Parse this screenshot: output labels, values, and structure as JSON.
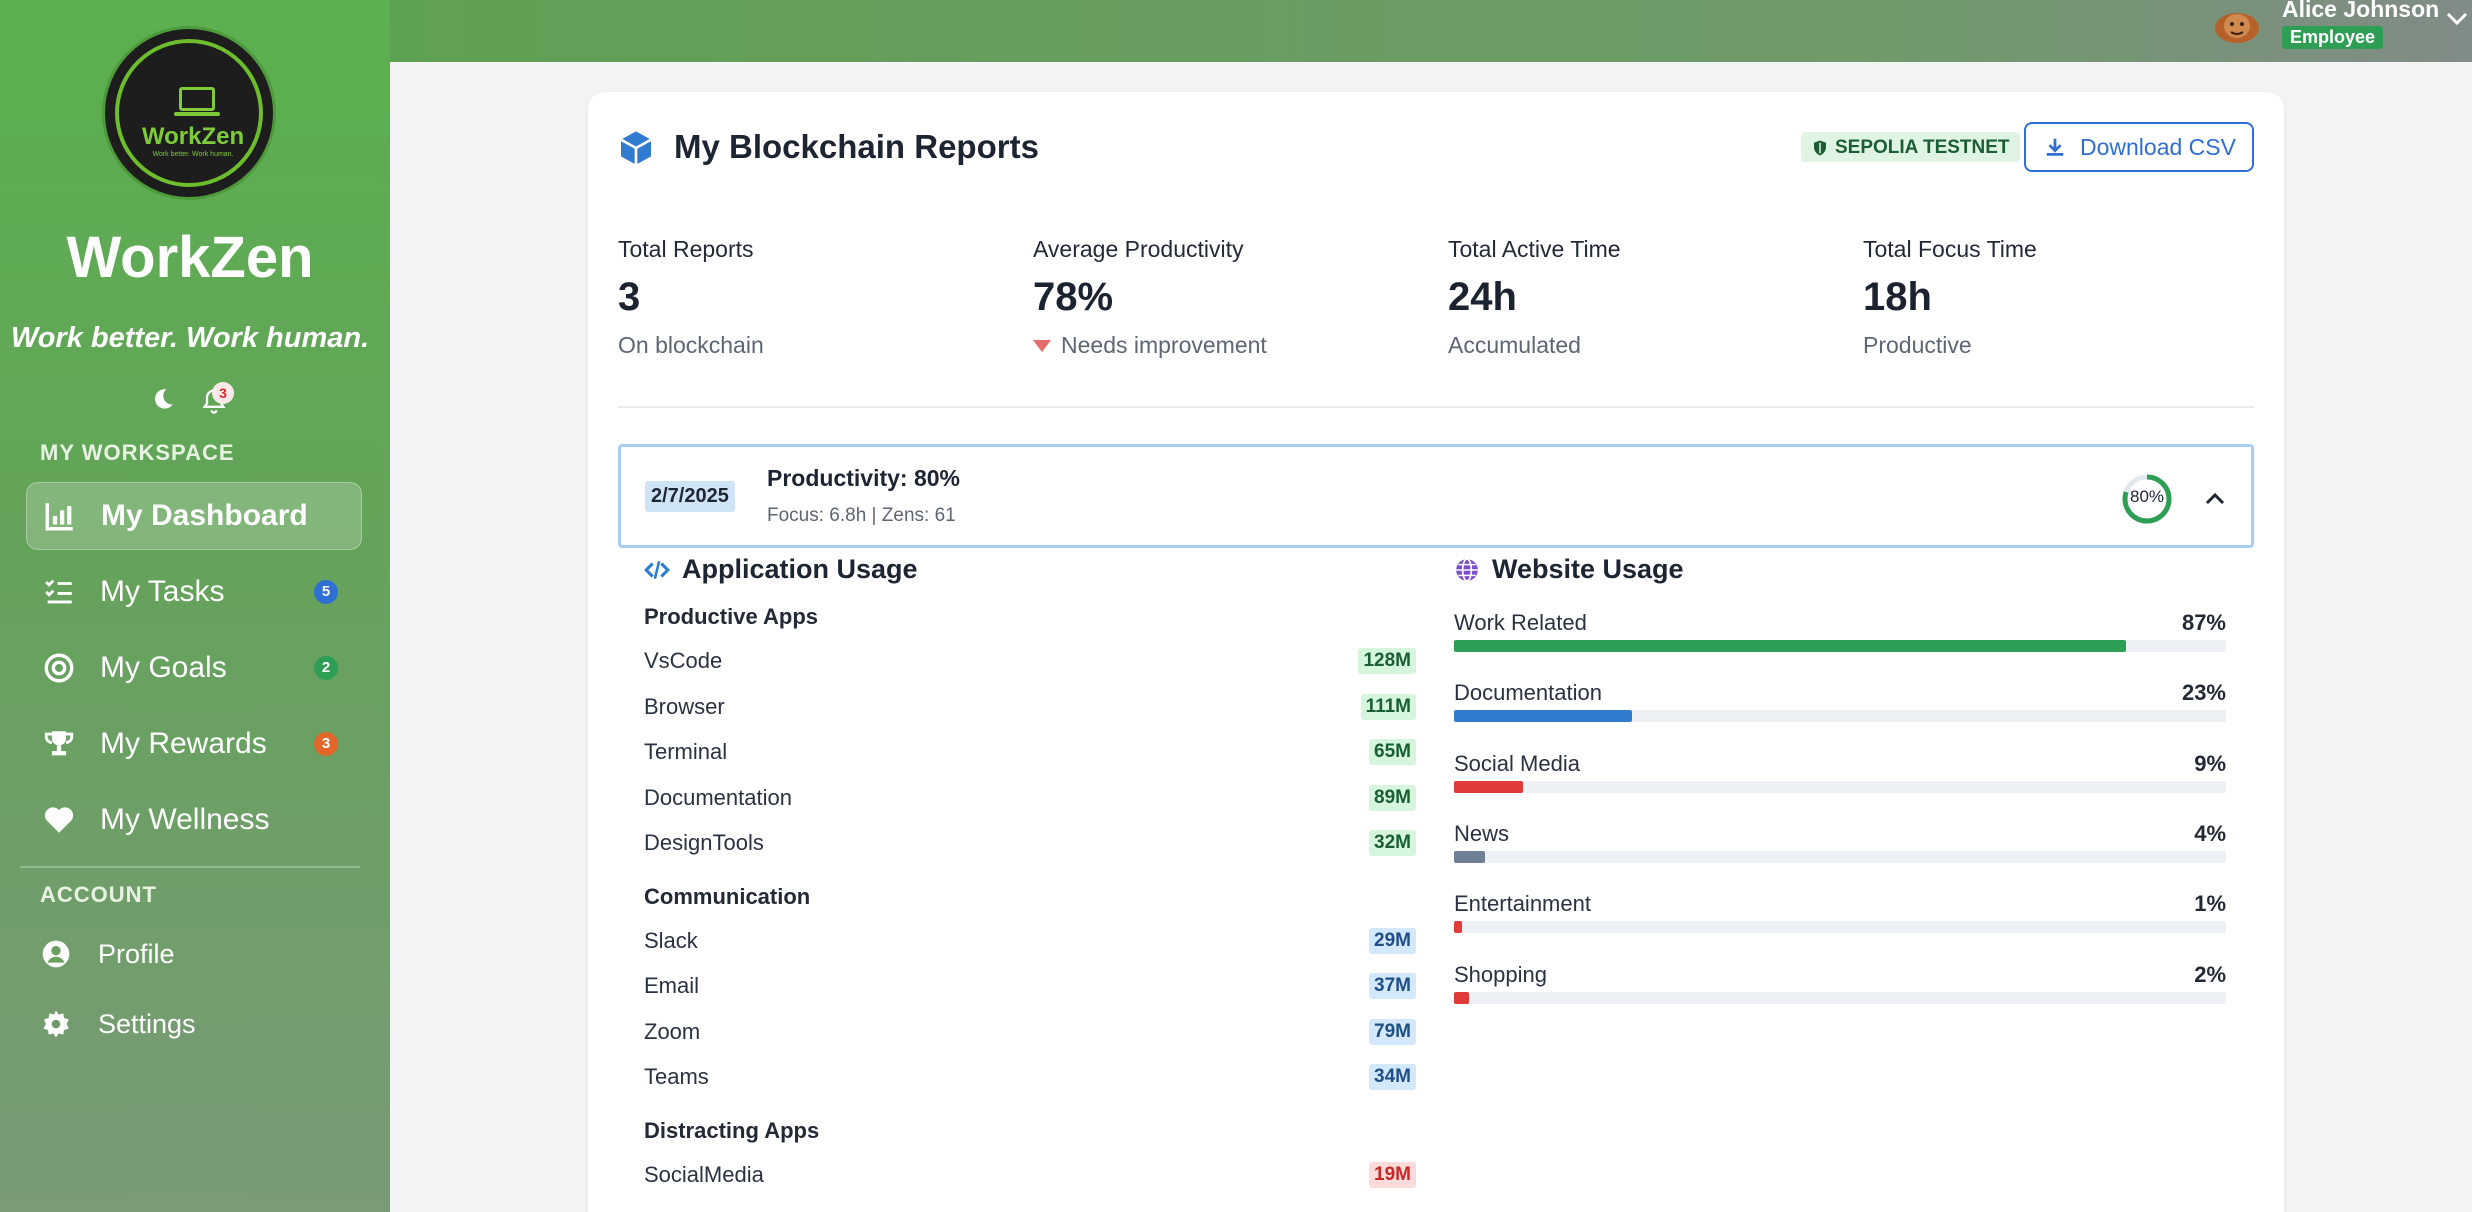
{
  "sidebar": {
    "brand": "WorkZen",
    "logo_text": "WorkZen",
    "logo_tagline": "Work better. Work human.",
    "slogan": "Work better. Work human.",
    "notification_count": "3",
    "workspace_label": "MY WORKSPACE",
    "nav": [
      {
        "label": "My Dashboard",
        "badge": "",
        "icon": "chart-icon"
      },
      {
        "label": "My Tasks",
        "badge": "5",
        "icon": "tasks-icon",
        "badge_color": "#2f6fd3"
      },
      {
        "label": "My Goals",
        "badge": "2",
        "icon": "target-icon",
        "badge_color": "#2e9e54"
      },
      {
        "label": "My Rewards",
        "badge": "3",
        "icon": "trophy-icon",
        "badge_color": "#e0662a"
      },
      {
        "label": "My Wellness",
        "badge": "",
        "icon": "heart-icon"
      }
    ],
    "account_label": "ACCOUNT",
    "account": [
      {
        "label": "Profile",
        "icon": "user-icon"
      },
      {
        "label": "Settings",
        "icon": "gear-icon"
      }
    ]
  },
  "topbar": {
    "user_name": "Alice Johnson",
    "user_role": "Employee"
  },
  "card": {
    "title": "My Blockchain Reports",
    "network": "SEPOLIA TESTNET",
    "download_label": "Download CSV",
    "stats": [
      {
        "label": "Total Reports",
        "value": "3",
        "sub": "On blockchain",
        "trend": ""
      },
      {
        "label": "Average Productivity",
        "value": "78%",
        "sub": "Needs improvement",
        "trend": "down"
      },
      {
        "label": "Total Active Time",
        "value": "24h",
        "sub": "Accumulated",
        "trend": ""
      },
      {
        "label": "Total Focus Time",
        "value": "18h",
        "sub": "Productive",
        "trend": ""
      }
    ],
    "report": {
      "date": "2/7/2025",
      "title": "Productivity: 80%",
      "subtitle": "Focus: 6.8h | Zens: 61",
      "ring_label": "80%",
      "ring_value": 0.8
    },
    "app_usage": {
      "title": "Application Usage",
      "groups": [
        {
          "label": "Productive Apps",
          "kind": "productive",
          "items": [
            {
              "name": "VsCode",
              "value": "128M"
            },
            {
              "name": "Browser",
              "value": "111M"
            },
            {
              "name": "Terminal",
              "value": "65M"
            },
            {
              "name": "Documentation",
              "value": "89M"
            },
            {
              "name": "DesignTools",
              "value": "32M"
            }
          ]
        },
        {
          "label": "Communication",
          "kind": "communication",
          "items": [
            {
              "name": "Slack",
              "value": "29M"
            },
            {
              "name": "Email",
              "value": "37M"
            },
            {
              "name": "Zoom",
              "value": "79M"
            },
            {
              "name": "Teams",
              "value": "34M"
            }
          ]
        },
        {
          "label": "Distracting Apps",
          "kind": "distracting",
          "items": [
            {
              "name": "SocialMedia",
              "value": "19M"
            }
          ]
        }
      ]
    },
    "website_usage": {
      "title": "Website Usage",
      "items": [
        {
          "name": "Work Related",
          "pct": "87%",
          "value": 87,
          "color": "#2e9e54"
        },
        {
          "name": "Documentation",
          "pct": "23%",
          "value": 23,
          "color": "#2f7bd0"
        },
        {
          "name": "Social Media",
          "pct": "9%",
          "value": 9,
          "color": "#e03b3b"
        },
        {
          "name": "News",
          "pct": "4%",
          "value": 4,
          "color": "#6f7f95"
        },
        {
          "name": "Entertainment",
          "pct": "1%",
          "value": 1,
          "color": "#e03b3b"
        },
        {
          "name": "Shopping",
          "pct": "2%",
          "value": 2,
          "color": "#e03b3b"
        }
      ]
    }
  }
}
